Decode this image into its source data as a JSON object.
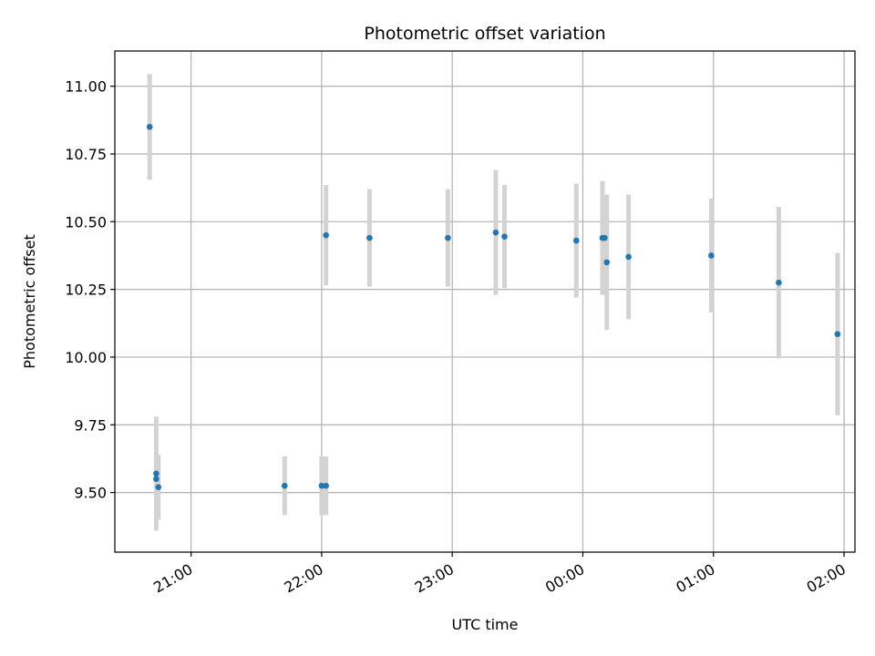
{
  "chart_data": {
    "type": "scatter",
    "title": "Photometric offset variation",
    "xlabel": "UTC time",
    "ylabel": "Photometric offset",
    "x_tick_labels": [
      "21:00",
      "22:00",
      "23:00",
      "00:00",
      "01:00",
      "02:00"
    ],
    "y_ticks": [
      9.5,
      9.75,
      10.0,
      10.25,
      10.5,
      10.75,
      11.0
    ],
    "y_tick_labels": [
      "9.50",
      "9.75",
      "10.00",
      "10.25",
      "10.50",
      "10.75",
      "11.00"
    ],
    "xlim": [
      "20:25",
      "02:05"
    ],
    "ylim": [
      9.28,
      11.13
    ],
    "grid": true,
    "marker_color": "#1f77b4",
    "errorbar_color": "#d3d3d3",
    "points": [
      {
        "time": "20:41",
        "y": 10.85,
        "err": 0.195
      },
      {
        "time": "20:44",
        "y": 9.57,
        "err": 0.21
      },
      {
        "time": "20:44",
        "y": 9.55,
        "err": 0.0
      },
      {
        "time": "20:45",
        "y": 9.52,
        "err": 0.12
      },
      {
        "time": "21:43",
        "y": 9.525,
        "err": 0.108
      },
      {
        "time": "22:00",
        "y": 9.525,
        "err": 0.108
      },
      {
        "time": "22:02",
        "y": 9.525,
        "err": 0.108
      },
      {
        "time": "22:02",
        "y": 10.45,
        "err": 0.185
      },
      {
        "time": "22:22",
        "y": 10.44,
        "err": 0.18
      },
      {
        "time": "22:58",
        "y": 10.44,
        "err": 0.18
      },
      {
        "time": "23:20",
        "y": 10.46,
        "err": 0.23
      },
      {
        "time": "23:24",
        "y": 10.445,
        "err": 0.19
      },
      {
        "time": "23:57",
        "y": 10.43,
        "err": 0.21
      },
      {
        "time": "00:09",
        "y": 10.44,
        "err": 0.21
      },
      {
        "time": "00:10",
        "y": 10.44,
        "err": 0.0
      },
      {
        "time": "00:11",
        "y": 10.35,
        "err": 0.25
      },
      {
        "time": "00:21",
        "y": 10.37,
        "err": 0.23
      },
      {
        "time": "00:59",
        "y": 10.375,
        "err": 0.21
      },
      {
        "time": "01:30",
        "y": 10.275,
        "err": 0.28
      },
      {
        "time": "01:57",
        "y": 10.085,
        "err": 0.3
      }
    ]
  }
}
